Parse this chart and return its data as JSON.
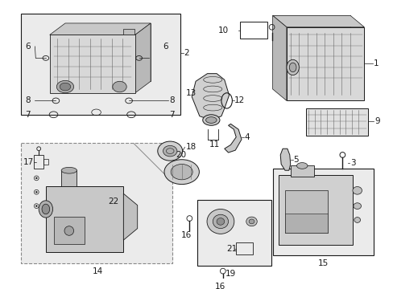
{
  "bg_color": "#ffffff",
  "fig_width": 4.89,
  "fig_height": 3.6,
  "dpi": 100,
  "dark": "#1a1a1a",
  "gray": "#666666",
  "light_fill": "#e8e8e8",
  "box_fill": "#ebebeb"
}
